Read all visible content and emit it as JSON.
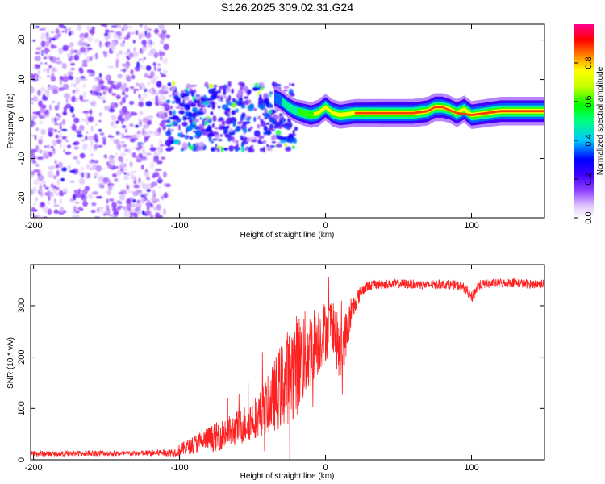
{
  "title": "S126.2025.309.02.31.G24",
  "colors": {
    "snr_line": "#ff2020",
    "background": "#ffffff",
    "axis": "#000000",
    "colorbar_stops": [
      "#e6ccff",
      "#8000ff",
      "#0000ff",
      "#00c8ff",
      "#00ff00",
      "#ffff00",
      "#ff8000",
      "#ff0000",
      "#ff0080"
    ]
  },
  "chart_data": [
    {
      "type": "heatmap",
      "title": "",
      "xlabel": "Height of straight line (km)",
      "ylabel": "Frequency (Hz)",
      "xlim": [
        -202,
        150
      ],
      "ylim": [
        -25,
        24
      ],
      "xticks": [
        -200,
        -100,
        0,
        100
      ],
      "xtick_labels": [
        "-200",
        "-100",
        "0",
        "100"
      ],
      "yticks": [
        -20,
        -10,
        0,
        10,
        20
      ],
      "ytick_labels": [
        "-20",
        "-10",
        "0",
        "10",
        "20"
      ],
      "colorbar": {
        "label": "Normalized spectral amplitude",
        "range": [
          0,
          1
        ],
        "ticks": [
          0.0,
          0.2,
          0.4,
          0.6,
          0.8
        ],
        "tick_labels": [
          "0.0",
          "0.2",
          "0.4",
          "0.6",
          "0.8"
        ]
      },
      "ridge": {
        "description_x": [
          -35,
          -30,
          -25,
          -20,
          -15,
          -10,
          -5,
          0,
          5,
          10,
          20,
          40,
          60,
          70,
          75,
          80,
          85,
          90,
          95,
          100,
          110,
          120,
          130,
          150
        ],
        "frequency_hz": [
          5.5,
          4.5,
          3.0,
          2.0,
          1.5,
          1.0,
          1.5,
          3.0,
          1.5,
          1.0,
          1.5,
          1.5,
          1.5,
          2.0,
          3.0,
          3.0,
          2.5,
          1.5,
          2.5,
          1.0,
          1.5,
          2.0,
          2.0,
          2.0
        ],
        "amplitude": [
          0.45,
          0.5,
          0.55,
          0.6,
          0.7,
          0.75,
          0.8,
          0.8,
          0.85,
          0.85,
          0.9,
          0.92,
          0.92,
          0.95,
          0.9,
          0.9,
          0.85,
          0.9,
          0.85,
          0.9,
          0.92,
          0.95,
          0.95,
          0.95
        ]
      },
      "noise_regions": [
        {
          "x_range": [
            -202,
            -108
          ],
          "freq_range": [
            -25,
            24
          ],
          "amplitude": 0.08
        },
        {
          "x_range": [
            -108,
            -20
          ],
          "freq_range": [
            -8,
            9
          ],
          "amplitude": 0.18
        }
      ]
    },
    {
      "type": "line",
      "title": "",
      "xlabel": "Height of straight line (km)",
      "ylabel": "SNR (10 * v/v)",
      "xlim": [
        -202,
        150
      ],
      "ylim": [
        0,
        380
      ],
      "xticks": [
        -200,
        -100,
        0,
        100
      ],
      "xtick_labels": [
        "-200",
        "-100",
        "0",
        "100"
      ],
      "yticks": [
        0,
        100,
        200,
        300
      ],
      "ytick_labels": [
        "0",
        "100",
        "200",
        "300"
      ],
      "series": [
        {
          "name": "SNR",
          "x": [
            -202,
            -180,
            -160,
            -140,
            -120,
            -105,
            -100,
            -95,
            -90,
            -85,
            -80,
            -75,
            -70,
            -65,
            -60,
            -55,
            -50,
            -45,
            -40,
            -35,
            -30,
            -25,
            -20,
            -15,
            -10,
            -5,
            0,
            5,
            10,
            15,
            20,
            25,
            30,
            40,
            50,
            60,
            70,
            80,
            90,
            95,
            100,
            105,
            110,
            120,
            130,
            140,
            150
          ],
          "values": [
            12,
            12,
            13,
            12,
            13,
            15,
            18,
            25,
            30,
            35,
            40,
            45,
            50,
            55,
            62,
            70,
            80,
            90,
            105,
            125,
            145,
            165,
            185,
            200,
            215,
            235,
            250,
            270,
            200,
            255,
            305,
            330,
            340,
            342,
            343,
            342,
            340,
            342,
            340,
            335,
            315,
            340,
            342,
            344,
            345,
            342,
            343
          ],
          "noise_amplitude": [
            6,
            5,
            6,
            5,
            6,
            8,
            12,
            15,
            18,
            22,
            25,
            28,
            30,
            32,
            35,
            38,
            40,
            45,
            55,
            70,
            85,
            95,
            100,
            90,
            80,
            70,
            60,
            55,
            60,
            45,
            20,
            12,
            10,
            9,
            9,
            9,
            9,
            9,
            9,
            10,
            12,
            10,
            9,
            9,
            9,
            9,
            9
          ]
        }
      ]
    }
  ]
}
